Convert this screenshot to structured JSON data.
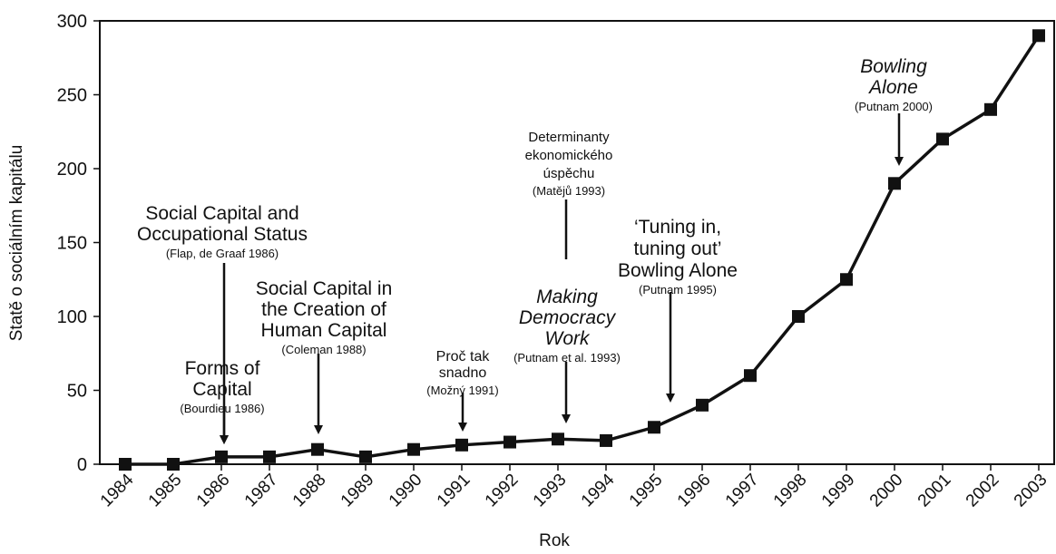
{
  "chart_data": {
    "type": "line",
    "title": "",
    "xlabel": "Rok",
    "ylabel": "Statě o sociálním kapitálu",
    "ylim": [
      0,
      300
    ],
    "yticks": [
      0,
      50,
      100,
      150,
      200,
      250,
      300
    ],
    "grid": false,
    "x": [
      "1984",
      "1985",
      "1986",
      "1987",
      "1988",
      "1989",
      "1990",
      "1991",
      "1992",
      "1993",
      "1994",
      "1995",
      "1996",
      "1997",
      "1998",
      "1999",
      "2000",
      "2001",
      "2002",
      "2003"
    ],
    "values": [
      0,
      0,
      5,
      5,
      10,
      5,
      10,
      13,
      15,
      17,
      16,
      25,
      40,
      60,
      100,
      125,
      190,
      220,
      240,
      290
    ],
    "annotations": [
      {
        "lines": [
          "Social Capital and",
          "Occupational Status"
        ],
        "cite": "(Flap, de Graaf 1986)",
        "italic": false,
        "x_year": 1986
      },
      {
        "lines": [
          "Forms of",
          "Capital"
        ],
        "cite": "(Bourdieu 1986)",
        "italic": false,
        "x_year": 1986
      },
      {
        "lines": [
          "Social Capital in",
          "the Creation of",
          "Human Capital"
        ],
        "cite": "(Coleman 1988)",
        "italic": false,
        "x_year": 1988
      },
      {
        "lines": [
          "Proč tak",
          "snadno"
        ],
        "cite": "(Možný 1991)",
        "italic": false,
        "x_year": 1991
      },
      {
        "lines": [
          "Determinanty",
          "ekonomického",
          "úspěchu"
        ],
        "cite": "(Matějů 1993)",
        "italic": false,
        "x_year": 1993
      },
      {
        "lines": [
          "Making",
          "Democracy",
          "Work"
        ],
        "cite": "(Putnam et al. 1993)",
        "italic": true,
        "x_year": 1993
      },
      {
        "lines": [
          "‘Tuning in,",
          "tuning out’",
          "Bowling Alone"
        ],
        "cite": "(Putnam 1995)",
        "italic": false,
        "x_year": 1995
      },
      {
        "lines": [
          "Bowling",
          "Alone"
        ],
        "cite": "(Putnam 2000)",
        "italic": true,
        "x_year": 2000
      }
    ]
  }
}
